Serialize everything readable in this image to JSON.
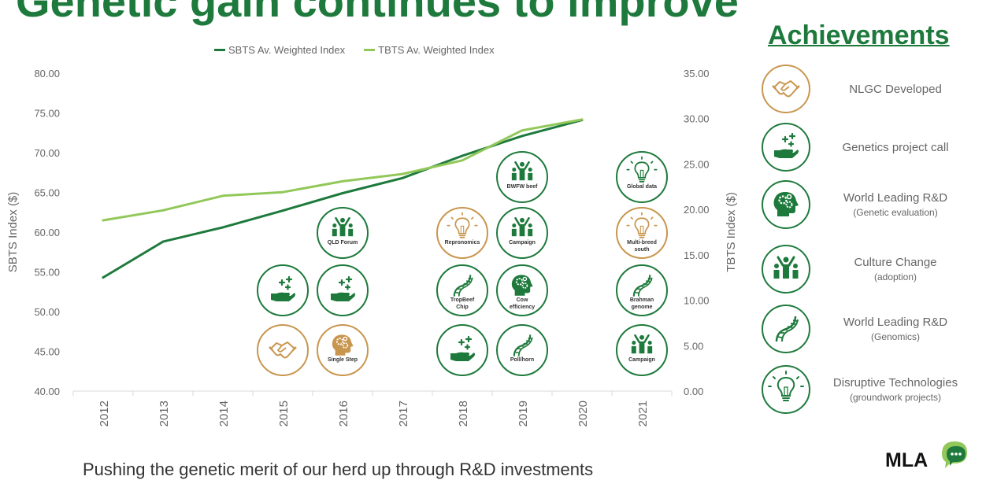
{
  "title": "Genetic gain continues to improve",
  "bottom_text": "Pushing the genetic merit of our herd up through R&D investments",
  "logo_text": "MLA",
  "colors": {
    "dark_green": "#1e7a3c",
    "light_green": "#92c85a",
    "gold": "#c9964f",
    "axis_text": "#666666"
  },
  "chart_data": {
    "type": "line",
    "x": [
      "2012",
      "2013",
      "2014",
      "2015",
      "2016",
      "2017",
      "2018",
      "2019",
      "2020",
      "2021"
    ],
    "series": [
      {
        "name": "SBTS Av. Weighted Index",
        "axis": "left",
        "color": "#1e7a3c",
        "values": [
          54.3,
          58.8,
          60.6,
          62.7,
          64.9,
          66.8,
          69.6,
          72.1,
          74.1,
          null
        ]
      },
      {
        "name": "TBTS Av. Weighted Index",
        "axis": "right",
        "color": "#92c85a",
        "values": [
          18.8,
          19.9,
          21.5,
          21.9,
          23.1,
          23.9,
          25.4,
          28.7,
          29.9,
          null
        ]
      }
    ],
    "y_left": {
      "label": "SBTS Index ($)",
      "min": 40,
      "max": 80,
      "ticks": [
        "40.00",
        "45.00",
        "50.00",
        "55.00",
        "60.00",
        "65.00",
        "70.00",
        "75.00",
        "80.00"
      ]
    },
    "y_right": {
      "label": "TBTS Index ($)",
      "min": 0,
      "max": 35,
      "ticks": [
        "0.00",
        "5.00",
        "10.00",
        "15.00",
        "20.00",
        "25.00",
        "30.00",
        "35.00"
      ]
    },
    "legend_position": "top-center",
    "grid": false,
    "annotations": [
      {
        "year": "2015",
        "row": 1,
        "icon": "handshake",
        "style": "gold",
        "label": ""
      },
      {
        "year": "2015",
        "row": 2,
        "icon": "hand-sparkle",
        "style": "green",
        "label": ""
      },
      {
        "year": "2016",
        "row": 1,
        "icon": "head-gears",
        "style": "gold",
        "label": "Single Step"
      },
      {
        "year": "2016",
        "row": 2,
        "icon": "hand-sparkle",
        "style": "green",
        "label": ""
      },
      {
        "year": "2016",
        "row": 3,
        "icon": "people",
        "style": "green",
        "label": "QLD Forum"
      },
      {
        "year": "2018",
        "row": 1,
        "icon": "hand-sparkle",
        "style": "green",
        "label": ""
      },
      {
        "year": "2018",
        "row": 2,
        "icon": "dna",
        "style": "green",
        "label": "TropBeef Chip"
      },
      {
        "year": "2018",
        "row": 3,
        "icon": "bulb",
        "style": "gold",
        "label": "Repronomics"
      },
      {
        "year": "2019",
        "row": 1,
        "icon": "dna",
        "style": "green",
        "label": "Poll/horn"
      },
      {
        "year": "2019",
        "row": 2,
        "icon": "head-gears",
        "style": "green",
        "label": "Cow efficiency"
      },
      {
        "year": "2019",
        "row": 3,
        "icon": "people",
        "style": "green",
        "label": "Campaign"
      },
      {
        "year": "2019",
        "row": 4,
        "icon": "people",
        "style": "green",
        "label": "BWFW beef"
      },
      {
        "year": "2021",
        "row": 1,
        "icon": "people",
        "style": "green",
        "label": "Campaign"
      },
      {
        "year": "2021",
        "row": 2,
        "icon": "dna",
        "style": "green",
        "label": "Brahman genome"
      },
      {
        "year": "2021",
        "row": 3,
        "icon": "bulb",
        "style": "gold",
        "label": "Multi-breed south"
      },
      {
        "year": "2021",
        "row": 4,
        "icon": "bulb",
        "style": "green",
        "label": "Global data"
      }
    ]
  },
  "achievements": {
    "title": "Achievements",
    "items": [
      {
        "icon": "handshake",
        "style": "gold",
        "label": "NLGC Developed",
        "sub": ""
      },
      {
        "icon": "hand-sparkle",
        "style": "green",
        "label": "Genetics project call",
        "sub": ""
      },
      {
        "icon": "head-gears",
        "style": "green",
        "label": "World Leading R&D",
        "sub": "(Genetic evaluation)"
      },
      {
        "icon": "people",
        "style": "green",
        "label": "Culture Change",
        "sub": "(adoption)"
      },
      {
        "icon": "dna",
        "style": "green",
        "label": "World Leading R&D",
        "sub": "(Genomics)"
      },
      {
        "icon": "bulb",
        "style": "green",
        "label": "Disruptive Technologies",
        "sub": "(groundwork projects)"
      }
    ]
  }
}
